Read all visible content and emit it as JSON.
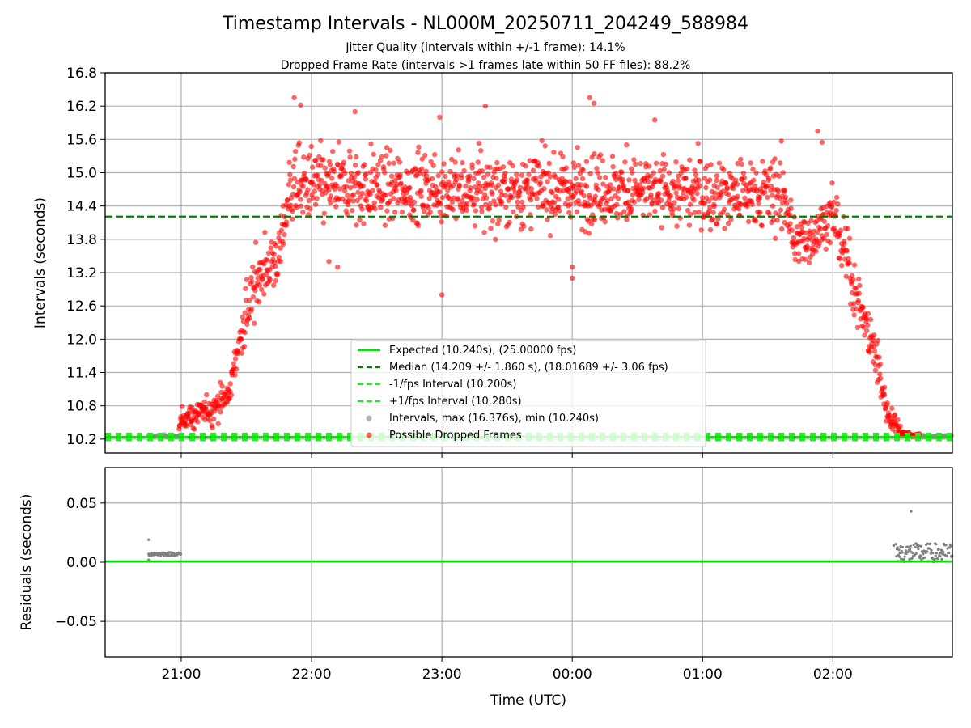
{
  "figure": {
    "title": "Timestamp Intervals - NL000M_20250711_204249_588984",
    "subtitle_1": "Jitter Quality (intervals within +/-1 frame): 14.1%",
    "subtitle_2": "Dropped Frame Rate (intervals >1 frames late within 50 FF files): 88.2%"
  },
  "chart_data": [
    {
      "type": "scatter",
      "panel": "intervals",
      "ylabel": "Intervals (seconds)",
      "xlabel": "",
      "x_range_hours_utc": [
        "20:25",
        "02:55"
      ],
      "ylim": [
        9.95,
        16.8
      ],
      "y_ticks": [
        "10.2",
        "10.8",
        "11.4",
        "12.0",
        "12.6",
        "13.2",
        "13.8",
        "14.4",
        "15.0",
        "15.6",
        "16.2",
        "16.8"
      ],
      "grid": true,
      "legend_position": "lower center",
      "reference_lines": {
        "expected": 10.24,
        "median": 14.209,
        "minus_one_fps": 10.2,
        "plus_one_fps": 10.28
      },
      "series": [
        {
          "name": "Expected (10.240s), (25.00000 fps)",
          "style": "line",
          "color": "#00e600"
        },
        {
          "name": "Median (14.209 +/- 1.860 s), (18.01689 +/- 3.06 fps)",
          "style": "dashed",
          "color": "#008000"
        },
        {
          "name": "-1/fps Interval (10.200s)",
          "style": "dashed",
          "color": "#22ee22"
        },
        {
          "name": "+1/fps Interval (10.280s)",
          "style": "dashed",
          "color": "#22ee22"
        },
        {
          "name": "Intervals, max (16.376s), min (10.240s)",
          "style": "marker",
          "color": "#808080"
        },
        {
          "name": "Possible Dropped Frames",
          "style": "marker",
          "color": "#ff0000"
        }
      ],
      "profile": {
        "description": "interval rise profile (time, mean interval s, spread s)",
        "points": [
          [
            "20:45",
            10.24,
            0.0
          ],
          [
            "20:58",
            10.24,
            0.0
          ],
          [
            "21:00",
            10.55,
            0.12
          ],
          [
            "21:15",
            10.75,
            0.18
          ],
          [
            "21:22",
            11.0,
            0.2
          ],
          [
            "21:28",
            12.2,
            0.35
          ],
          [
            "21:36",
            13.2,
            0.4
          ],
          [
            "21:45",
            13.5,
            0.35
          ],
          [
            "21:50",
            14.7,
            0.45
          ],
          [
            "22:00",
            14.75,
            0.45
          ],
          [
            "23:00",
            14.7,
            0.45
          ],
          [
            "00:00",
            14.7,
            0.45
          ],
          [
            "01:00",
            14.65,
            0.45
          ],
          [
            "01:38",
            14.6,
            0.45
          ],
          [
            "01:42",
            13.7,
            0.35
          ],
          [
            "01:52",
            13.9,
            0.3
          ],
          [
            "02:00",
            14.3,
            0.35
          ],
          [
            "02:05",
            13.6,
            0.4
          ],
          [
            "02:12",
            12.7,
            0.3
          ],
          [
            "02:20",
            11.6,
            0.4
          ],
          [
            "02:25",
            10.7,
            0.2
          ],
          [
            "02:32",
            10.3,
            0.06
          ],
          [
            "02:40",
            10.24,
            0.0
          ]
        ]
      },
      "outliers": [
        [
          "21:52",
          16.35
        ],
        [
          "21:55",
          16.22
        ],
        [
          "22:20",
          16.1
        ],
        [
          "22:59",
          16.0
        ],
        [
          "23:20",
          16.2
        ],
        [
          "00:08",
          16.35
        ],
        [
          "00:10",
          16.25
        ],
        [
          "00:25",
          15.5
        ],
        [
          "00:38",
          15.95
        ],
        [
          "23:00",
          12.8
        ],
        [
          "00:00",
          13.1
        ],
        [
          "00:00",
          13.3
        ],
        [
          "22:08",
          13.4
        ],
        [
          "22:12",
          13.3
        ],
        [
          "01:53",
          15.75
        ],
        [
          "01:55",
          15.55
        ]
      ]
    },
    {
      "type": "scatter",
      "panel": "residuals",
      "ylabel": "Residuals (seconds)",
      "xlabel": "Time (UTC)",
      "ylim": [
        -0.08,
        0.08
      ],
      "y_ticks": [
        "0.05",
        "0.00",
        "−0.05"
      ],
      "x_ticks": [
        "21:00",
        "22:00",
        "23:00",
        "00:00",
        "01:00",
        "02:00"
      ],
      "grid": true,
      "zero_line_color": "#00e600",
      "residual_clusters": [
        {
          "start": "20:45",
          "end": "21:00",
          "level": 0.007
        },
        {
          "start": "02:29",
          "end": "02:55",
          "level": 0.008
        }
      ],
      "residual_outliers": [
        [
          "20:45",
          0.019
        ],
        [
          "20:45",
          0.002
        ],
        [
          "02:36",
          0.043
        ],
        [
          "02:28",
          0.014
        ]
      ]
    }
  ]
}
